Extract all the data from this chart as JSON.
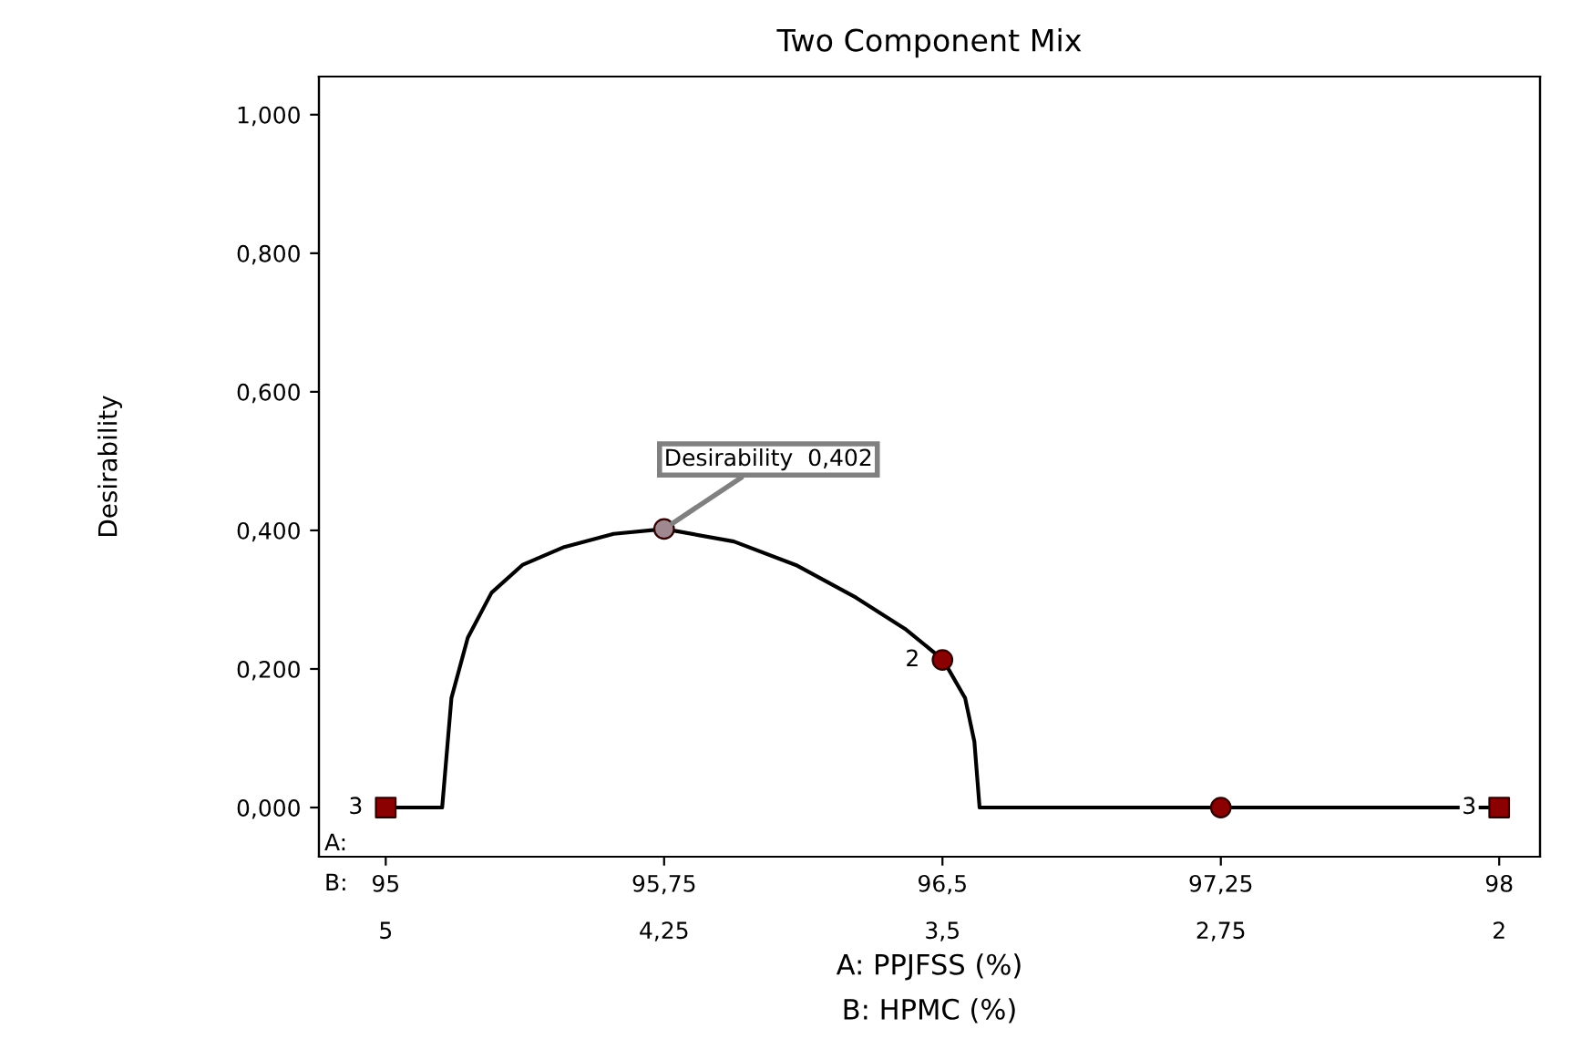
{
  "chart_data": {
    "type": "line",
    "title": "Two Component Mix",
    "xlabel": "A: PPJFSS (%)",
    "x2label": "B: HPMC (%)",
    "ylabel": "Desirability",
    "xlim": [
      94.82,
      98.11
    ],
    "ylim": [
      -0.071,
      1.055
    ],
    "xticks": [
      95,
      {
        "value": 95.75,
        "label": "95,75"
      },
      {
        "value": 96.5,
        "label": "96,5"
      },
      {
        "value": 97.25,
        "label": "97,25"
      },
      98
    ],
    "x2lim": [
      5.18,
      1.89
    ],
    "x2ticks": [
      5,
      {
        "value": 4.25,
        "label": "4,25"
      },
      {
        "value": 3.5,
        "label": "3,5"
      },
      {
        "value": 2.75,
        "label": "2,75"
      },
      2
    ],
    "yticks": [
      {
        "value": 0,
        "label": "0,000"
      },
      {
        "value": 0.2,
        "label": "0,200"
      },
      {
        "value": 0.4,
        "label": "0,400"
      },
      {
        "value": 0.6,
        "label": "0,600"
      },
      {
        "value": 0.8,
        "label": "0,800"
      },
      {
        "value": 1.0,
        "label": "1,000"
      }
    ],
    "grid": false,
    "legend": false,
    "series": [
      {
        "color": "#000000",
        "marker": "none",
        "x": [
          95,
          95.152,
          95.177,
          95.221,
          95.285,
          95.368,
          95.481,
          95.614,
          95.751,
          95.938,
          96.105,
          96.267,
          96.399,
          96.502,
          96.561,
          96.586,
          96.6,
          98
        ],
        "values": [
          0,
          0,
          0.158,
          0.245,
          0.31,
          0.35,
          0.376,
          0.395,
          0.402,
          0.384,
          0.35,
          0.303,
          0.258,
          0.213,
          0.158,
          0.095,
          0,
          0
        ]
      },
      {
        "type": "scatter",
        "color": "#8b0000",
        "marker": "square",
        "x": [
          95,
          98
        ],
        "values": [
          0,
          0
        ]
      },
      {
        "type": "scatter",
        "color": "#8b0000",
        "marker": "circle",
        "x": [
          96.5,
          97.25
        ],
        "values": [
          0.213,
          0
        ]
      },
      {
        "type": "scatter",
        "color": "#a08890",
        "marker": "circle",
        "x": [
          95.75
        ],
        "values": [
          0.402
        ]
      }
    ],
    "annotations": [
      {
        "text": "Desirability  0,402",
        "x": 95.75,
        "y": 0.402
      },
      {
        "text": "3",
        "x": 95,
        "y": 0
      },
      {
        "text": "2",
        "x": 96.5,
        "y": 0.213
      },
      {
        "text": "3",
        "x": 98,
        "y": 0
      },
      "A:",
      "B:"
    ]
  }
}
